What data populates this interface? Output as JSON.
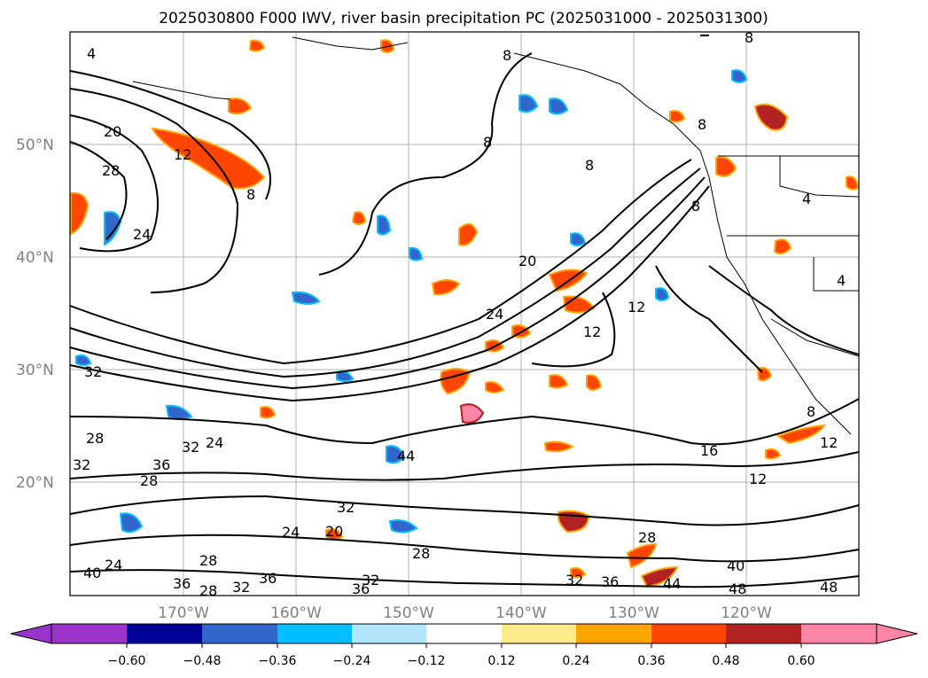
{
  "title": "2025030800 F000 IWV, river basin precipitation PC (2025031000 - 2025031300)",
  "lat_labels": [
    "50°N",
    "40°N",
    "30°N",
    "20°N"
  ],
  "lon_labels": [
    "170°W",
    "160°W",
    "150°W",
    "140°W",
    "130°W",
    "120°W"
  ],
  "colorbar": {
    "ticks": [
      "−0.60",
      "−0.48",
      "−0.36",
      "−0.24",
      "−0.12",
      "0.12",
      "0.24",
      "0.36",
      "0.48",
      "0.60"
    ],
    "colors": [
      "#9933cc",
      "#000099",
      "#3366cc",
      "#00bfff",
      "#b3e5fc",
      "#ffffff",
      "#ffeb8a",
      "#ffa500",
      "#ff4500",
      "#b22222",
      "#ff85a7"
    ]
  },
  "contour_labels": [
    "4",
    "8",
    "12",
    "16",
    "20",
    "24",
    "28",
    "32",
    "36",
    "40",
    "44",
    "48"
  ],
  "colors": {
    "contour": "#000000",
    "grid": "#b0b0b0",
    "tick_labels": "#808080"
  }
}
